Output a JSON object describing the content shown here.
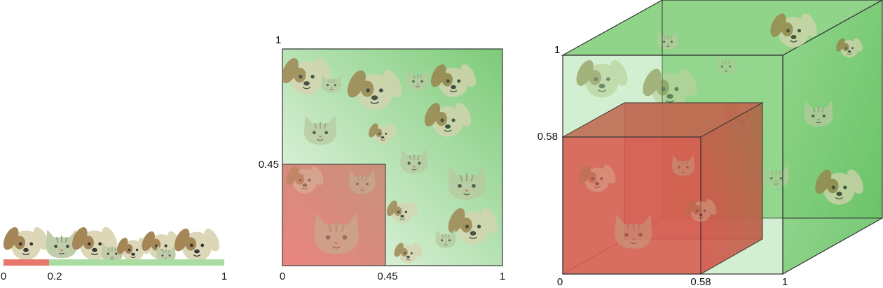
{
  "panels": [
    {
      "labels": [
        "0",
        "0.2",
        "1"
      ]
    },
    {
      "labels": [
        "1",
        "0.45",
        "0",
        "0.45",
        "1"
      ]
    },
    {
      "labels": [
        "1",
        "0.58",
        "0",
        "0.58",
        "1"
      ]
    }
  ]
}
